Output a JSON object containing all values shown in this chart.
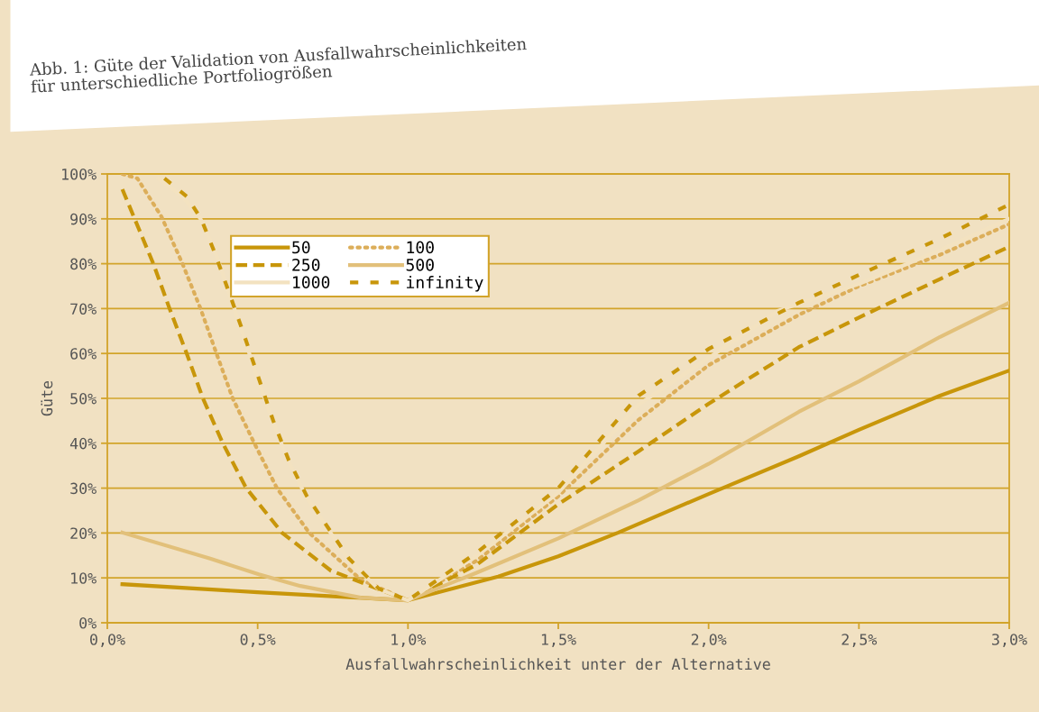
{
  "chart_data": {
    "type": "line",
    "title": "Abb. 1: Güte der Validation von Ausfallwahrscheinlichkeiten\nfür unterschiedliche Portfoliogrößen",
    "xlabel": "Ausfallwahrscheinlichkeit unter der Alternative",
    "ylabel": "Güte",
    "xlim": [
      0,
      3
    ],
    "xticks": [
      {
        "value": 0,
        "label": "0,0%"
      },
      {
        "value": 0.5,
        "label": "0,5%"
      },
      {
        "value": 1,
        "label": "1,0%"
      },
      {
        "value": 1.5,
        "label": "1,5%"
      },
      {
        "value": 2,
        "label": "2,0%"
      },
      {
        "value": 2.5,
        "label": "2,5%"
      },
      {
        "value": 3,
        "label": "3,0%"
      }
    ],
    "ylim": [
      0,
      100
    ],
    "yticks": [
      {
        "value": 0,
        "label": "0%"
      },
      {
        "value": 10,
        "label": "10%"
      },
      {
        "value": 20,
        "label": "20%"
      },
      {
        "value": 30,
        "label": "30%"
      },
      {
        "value": 40,
        "label": "40%"
      },
      {
        "value": 50,
        "label": "50%"
      },
      {
        "value": 60,
        "label": "60%"
      },
      {
        "value": 70,
        "label": "70%"
      },
      {
        "value": 80,
        "label": "80%"
      },
      {
        "value": 90,
        "label": "90%"
      },
      {
        "value": 100,
        "label": "100%"
      }
    ],
    "grid": "y",
    "legend": "top",
    "marker": "none",
    "series": [
      {
        "name": "50",
        "color": "#c8960a",
        "line_style": "solid",
        "x": [
          0.05,
          0.5,
          1.0,
          1.3,
          1.5,
          1.7,
          2.0,
          2.3,
          2.5,
          2.77,
          3.0
        ],
        "values": [
          8.6,
          6.8,
          5,
          10.3,
          14.8,
          20.1,
          28.7,
          37.1,
          43,
          50.6,
          56.2
        ]
      },
      {
        "name": "100",
        "color": "#dcae5a",
        "line_style": "dotted",
        "x": [
          0.05,
          0.1,
          0.18,
          0.25,
          0.31,
          0.363,
          0.417,
          0.489,
          0.564,
          0.672,
          0.843,
          1.0,
          1.23,
          1.5,
          1.767,
          2.0,
          2.3,
          2.5,
          2.77,
          3.0
        ],
        "values": [
          100,
          99,
          90.5,
          80,
          70,
          60,
          50,
          40,
          30,
          20,
          9.6,
          5,
          13.9,
          28.2,
          45.2,
          57.4,
          68.6,
          75,
          82,
          88.8
        ]
      },
      {
        "name": "250",
        "color": "#c8960a",
        "line_style": "dashed",
        "x": [
          0.05,
          0.153,
          0.207,
          0.264,
          0.318,
          0.384,
          0.462,
          0.582,
          0.744,
          1.0,
          1.23,
          1.5,
          1.767,
          2.0,
          2.3,
          2.5,
          2.77,
          3.0
        ],
        "values": [
          96.6,
          80,
          70,
          60,
          50,
          40,
          30,
          20,
          11.6,
          5,
          13,
          26.4,
          38.2,
          48.8,
          61.4,
          68,
          76.6,
          83.8
        ]
      },
      {
        "name": "500",
        "color": "#e2c07a",
        "line_style": "solid",
        "x": [
          0.05,
          0.342,
          0.504,
          0.642,
          0.843,
          1.0,
          1.23,
          1.5,
          1.767,
          2.0,
          2.3,
          2.5,
          2.77,
          3.0
        ],
        "values": [
          20.1,
          14.3,
          10.8,
          8.2,
          5.6,
          5,
          11.2,
          18.8,
          27.3,
          35.4,
          47,
          53.8,
          63.7,
          71.3
        ]
      },
      {
        "name": "1000",
        "color": "#f3e2c0",
        "line_style": "solid",
        "x": [
          0.17,
          0.25,
          0.31,
          0.36,
          0.4,
          0.45,
          0.5,
          0.55,
          0.6,
          0.66,
          0.72,
          0.8,
          0.9,
          1.0,
          1.23,
          1.5,
          1.767,
          2.0,
          2.23,
          2.5,
          2.77,
          3.0
        ],
        "values": [
          99,
          95,
          90,
          82.5,
          74.5,
          64.5,
          54.4,
          45,
          36.3,
          28.3,
          22.3,
          14.3,
          7.6,
          5,
          15,
          29,
          48.6,
          59,
          69.5,
          75.5,
          83,
          90
        ]
      },
      {
        "name": "infinity",
        "color": "#c8960a",
        "line_style": "loosely_dashed",
        "x": [
          0.19,
          0.264,
          0.312,
          0.357,
          0.4,
          0.453,
          0.504,
          0.552,
          0.603,
          0.663,
          0.723,
          0.804,
          0.903,
          1.0,
          1.23,
          1.5,
          1.767,
          2.0,
          2.3,
          2.5,
          2.77,
          3.0
        ],
        "values": [
          99,
          95,
          90,
          82.5,
          74.5,
          64.5,
          54.4,
          45,
          36.3,
          28.3,
          22.3,
          14.3,
          7.6,
          5,
          15.7,
          30,
          50.6,
          61,
          71.3,
          77.5,
          85.6,
          93.2
        ]
      }
    ]
  }
}
